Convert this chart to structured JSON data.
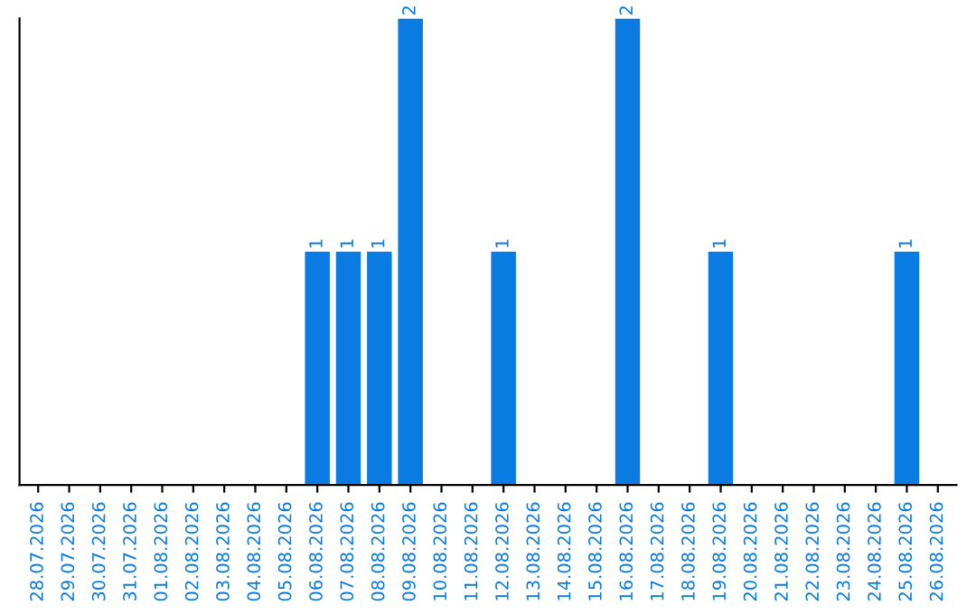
{
  "chart_data": {
    "type": "bar",
    "categories": [
      "28.07.2026",
      "29.07.2026",
      "30.07.2026",
      "31.07.2026",
      "01.08.2026",
      "02.08.2026",
      "03.08.2026",
      "04.08.2026",
      "05.08.2026",
      "06.08.2026",
      "07.08.2026",
      "08.08.2026",
      "09.08.2026",
      "10.08.2026",
      "11.08.2026",
      "12.08.2026",
      "13.08.2026",
      "14.08.2026",
      "15.08.2026",
      "16.08.2026",
      "17.08.2026",
      "18.08.2026",
      "19.08.2026",
      "20.08.2026",
      "21.08.2026",
      "22.08.2026",
      "23.08.2026",
      "24.08.2026",
      "25.08.2026",
      "26.08.2026"
    ],
    "values": [
      0,
      0,
      0,
      0,
      0,
      0,
      0,
      0,
      0,
      1,
      1,
      1,
      2,
      0,
      0,
      1,
      0,
      0,
      0,
      2,
      0,
      0,
      1,
      0,
      0,
      0,
      0,
      0,
      1,
      0
    ],
    "value_labels": [
      null,
      null,
      null,
      null,
      null,
      null,
      null,
      null,
      null,
      "1",
      "1",
      "1",
      "2",
      null,
      null,
      "1",
      null,
      null,
      null,
      "2",
      null,
      null,
      "1",
      null,
      null,
      null,
      null,
      null,
      "1",
      null
    ],
    "color": "#0a7be0",
    "tick_labels": "x",
    "grid": false,
    "legend": false
  }
}
